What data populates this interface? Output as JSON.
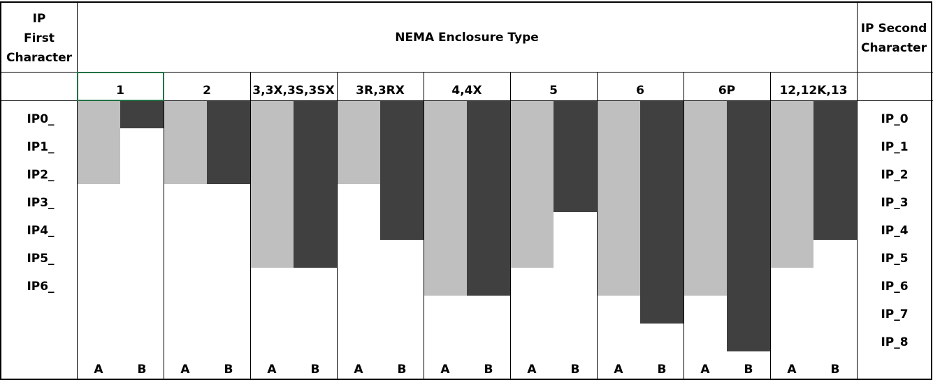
{
  "left_header": [
    "IP",
    "First",
    "Character"
  ],
  "title": "NEMA Enclosure Type",
  "right_header": [
    "IP Second",
    "Character"
  ],
  "first_char_labels": [
    "IP0_",
    "IP1_",
    "IP2_",
    "IP3_",
    "IP4_",
    "IP5_",
    "IP6_"
  ],
  "second_char_labels": [
    "IP_0",
    "IP_1",
    "IP_2",
    "IP_3",
    "IP_4",
    "IP_5",
    "IP_6",
    "IP_7",
    "IP_8"
  ],
  "subcolumns": [
    "A",
    "B"
  ],
  "enclosures": [
    {
      "name": "1",
      "first": 2,
      "second": 0
    },
    {
      "name": "2",
      "first": 2,
      "second": 2
    },
    {
      "name": "3,3X,3S,3SX",
      "first": 5,
      "second": 5
    },
    {
      "name": "3R,3RX",
      "first": 2,
      "second": 4
    },
    {
      "name": "4,4X",
      "first": 6,
      "second": 6
    },
    {
      "name": "5",
      "first": 5,
      "second": 3
    },
    {
      "name": "6",
      "first": 6,
      "second": 7
    },
    {
      "name": "6P",
      "first": 6,
      "second": 8
    },
    {
      "name": "12,12K,13",
      "first": 5,
      "second": 4
    }
  ]
}
